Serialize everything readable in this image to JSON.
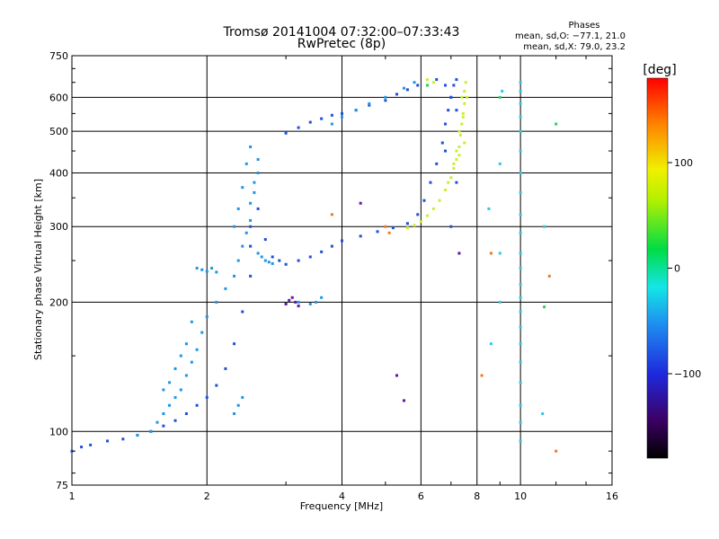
{
  "chart_data": {
    "type": "scatter",
    "title": "Tromsø 20141004 07:32:00–07:33:43",
    "subtitle": "RwPretec (8p)",
    "xlabel": "Frequency [MHz]",
    "ylabel": "Stationary phase Virtual Height [km]",
    "x_scale": "log",
    "y_scale": "log",
    "xlim": [
      1,
      16
    ],
    "ylim": [
      75,
      750
    ],
    "x_ticks": [
      1,
      2,
      4,
      6,
      8,
      10,
      16
    ],
    "x_tick_labels": [
      "1",
      "2",
      "4",
      "6",
      "8",
      "10",
      "16"
    ],
    "y_ticks": [
      75,
      100,
      200,
      300,
      400,
      500,
      600,
      750
    ],
    "y_tick_labels": [
      "75",
      "100",
      "200",
      "300",
      "400",
      "500",
      "600",
      "750"
    ],
    "grid": true,
    "phases": {
      "title": "Phases",
      "line_o": "mean, sd,O: −77.1, 21.0",
      "line_x": "mean, sd,X:  79.0, 23.2"
    },
    "colorbar": {
      "label": "[deg]",
      "range": [
        -180,
        180
      ],
      "ticks": [
        100,
        0,
        -100
      ],
      "tick_labels": [
        "100",
        "0",
        "−100"
      ]
    },
    "series": [
      {
        "name": "",
        "phase": -110,
        "color": "#1e50dc",
        "x": [
          1.0,
          1.05,
          1.1,
          1.2,
          1.3,
          1.4,
          1.5,
          1.6,
          1.7,
          1.8,
          1.9,
          2.0,
          2.1,
          2.2,
          2.3,
          2.4,
          2.5,
          2.5,
          2.5,
          2.6,
          2.7,
          2.8,
          2.9,
          3.0,
          3.2,
          3.4,
          3.6,
          3.8,
          4.0,
          4.4,
          4.8,
          5.2,
          5.6,
          5.9,
          6.1,
          6.3,
          6.5,
          6.7,
          6.8,
          6.9,
          7.0,
          7.1,
          7.2,
          3.0,
          3.2,
          3.4,
          3.6,
          3.8,
          4.0,
          4.3,
          4.6,
          5.0,
          5.3,
          5.6,
          5.9,
          6.5,
          6.8,
          7.0,
          7.2,
          7.0,
          7.2,
          6.8
        ],
        "y": [
          90,
          92,
          93,
          95,
          96,
          98,
          100,
          103,
          106,
          110,
          115,
          120,
          128,
          140,
          160,
          190,
          230,
          270,
          300,
          330,
          280,
          255,
          250,
          245,
          250,
          255,
          262,
          270,
          278,
          285,
          292,
          298,
          305,
          320,
          345,
          380,
          420,
          470,
          520,
          560,
          600,
          640,
          660,
          495,
          510,
          525,
          535,
          545,
          550,
          560,
          575,
          590,
          610,
          625,
          640,
          660,
          640,
          600,
          560,
          300,
          380,
          450
        ]
      },
      {
        "name": "",
        "phase": -70,
        "color": "#1f96e6",
        "x": [
          1.4,
          1.5,
          1.55,
          1.6,
          1.65,
          1.7,
          1.75,
          1.8,
          1.85,
          1.9,
          1.95,
          2.0,
          2.1,
          2.2,
          2.3,
          2.35,
          2.4,
          2.45,
          2.5,
          2.5,
          2.55,
          2.55,
          2.6,
          2.6,
          2.5,
          2.45,
          2.4,
          2.35,
          2.3,
          1.9,
          1.95,
          2.0,
          2.05,
          2.1,
          1.6,
          1.65,
          1.7,
          1.75,
          1.8,
          1.85,
          2.6,
          2.65,
          2.7,
          2.75,
          2.8,
          3.2,
          3.4,
          3.5,
          3.6,
          3.8,
          4.0,
          4.3,
          4.6,
          5.0,
          5.5,
          5.8,
          2.3,
          2.35,
          2.4
        ],
        "y": [
          98,
          100,
          105,
          110,
          115,
          120,
          125,
          135,
          145,
          155,
          170,
          185,
          200,
          215,
          230,
          250,
          270,
          290,
          310,
          340,
          360,
          380,
          400,
          430,
          460,
          420,
          370,
          330,
          300,
          240,
          238,
          236,
          240,
          235,
          125,
          130,
          140,
          150,
          160,
          180,
          260,
          255,
          250,
          248,
          246,
          200,
          198,
          200,
          205,
          520,
          540,
          560,
          580,
          600,
          630,
          650,
          110,
          115,
          120
        ]
      },
      {
        "name": "",
        "phase": 120,
        "color": "#c8f032",
        "x": [
          5.6,
          5.8,
          6.0,
          6.2,
          6.4,
          6.6,
          6.8,
          7.0,
          7.1,
          7.2,
          7.3,
          7.35,
          7.4,
          7.45,
          7.5,
          7.5,
          7.55,
          7.4,
          7.3,
          7.2,
          7.1,
          6.9,
          7.45,
          7.6,
          7.5,
          7.3,
          6.2,
          6.4
        ],
        "y": [
          298,
          302,
          308,
          318,
          330,
          345,
          365,
          390,
          410,
          430,
          460,
          490,
          520,
          550,
          580,
          620,
          650,
          600,
          500,
          450,
          420,
          380,
          540,
          600,
          470,
          440,
          660,
          650
        ]
      },
      {
        "name": "",
        "phase": -150,
        "color": "#5a1aa0",
        "x": [
          3.0,
          3.05,
          3.1,
          3.15,
          3.2,
          5.3,
          5.5,
          7.3,
          4.4
        ],
        "y": [
          198,
          202,
          205,
          200,
          196,
          135,
          118,
          260,
          340
        ]
      },
      {
        "name": "",
        "phase": 150,
        "color": "#f07822",
        "x": [
          5.0,
          5.1,
          8.2,
          8.6,
          12.0,
          11.6,
          3.8
        ],
        "y": [
          300,
          290,
          135,
          260,
          90,
          230,
          320
        ]
      },
      {
        "name": "",
        "phase": -60,
        "color": "#2cc8e8",
        "x": [
          10.0,
          10.0,
          10.0,
          10.0,
          10.0,
          10.0,
          10.0,
          10.0,
          10.0,
          10.0,
          10.0,
          10.0,
          10.0,
          10.0,
          10.0,
          10.0,
          10.0,
          10.0,
          10.0,
          10.0,
          10.0,
          10.0,
          9.0,
          9.0,
          9.0,
          9.1,
          8.5,
          8.6,
          11.2,
          11.3
        ],
        "y": [
          95,
          105,
          115,
          130,
          145,
          160,
          175,
          190,
          205,
          220,
          240,
          260,
          290,
          320,
          360,
          400,
          450,
          500,
          540,
          580,
          620,
          650,
          200,
          420,
          260,
          620,
          330,
          160,
          110,
          300
        ]
      },
      {
        "name": "",
        "phase": 30,
        "color": "#28d25a",
        "x": [
          9.0,
          12.0,
          11.3,
          6.2
        ],
        "y": [
          600,
          520,
          195,
          640
        ]
      }
    ]
  }
}
